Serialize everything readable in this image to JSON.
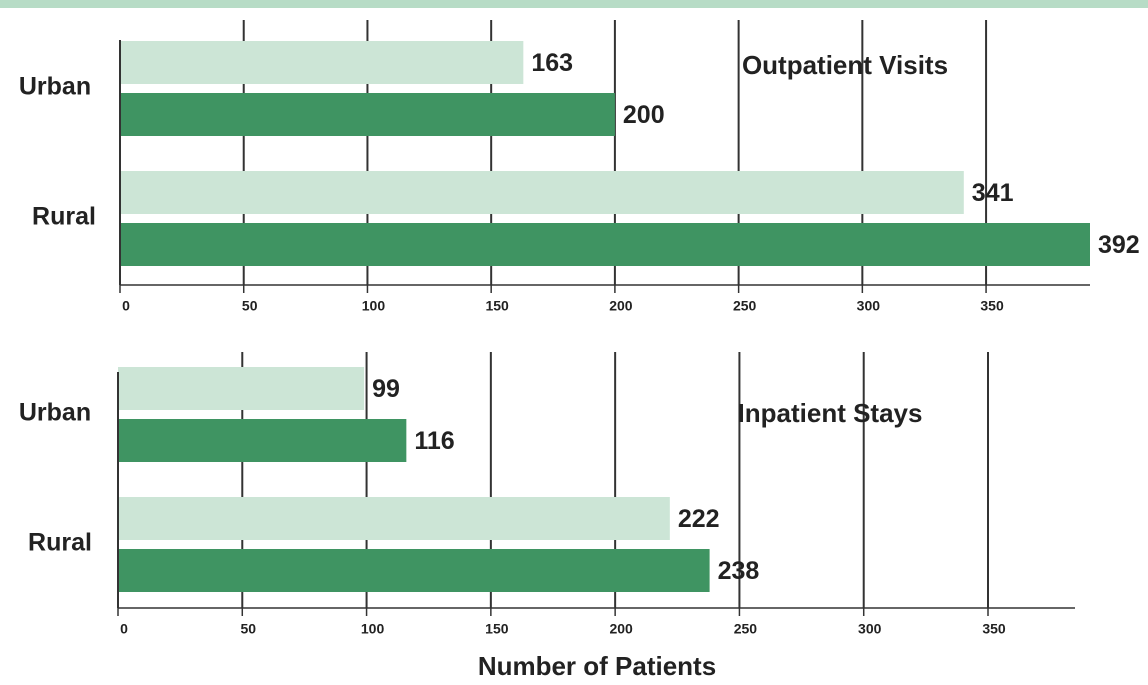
{
  "chart_data": [
    {
      "type": "barh",
      "annotation": "Outpatient Visits",
      "categories": [
        "Urban",
        "Rural"
      ],
      "series": [
        {
          "color": "#cce5d6",
          "values": [
            163,
            341
          ]
        },
        {
          "color": "#3f9462",
          "values": [
            200,
            392
          ]
        }
      ],
      "xlim": [
        0,
        392
      ],
      "xticks": [
        0,
        50,
        100,
        150,
        200,
        250,
        300,
        350
      ],
      "grid": true
    },
    {
      "type": "barh",
      "annotation": "Inpatient Stays",
      "xlabel": "Number of Patients",
      "categories": [
        "Urban",
        "Rural"
      ],
      "series": [
        {
          "color": "#cce5d6",
          "values": [
            99,
            222
          ]
        },
        {
          "color": "#3f9462",
          "values": [
            116,
            238
          ]
        }
      ],
      "xlim": [
        0,
        385
      ],
      "xticks": [
        0,
        50,
        100,
        150,
        200,
        250,
        300,
        350
      ],
      "grid": true
    }
  ]
}
